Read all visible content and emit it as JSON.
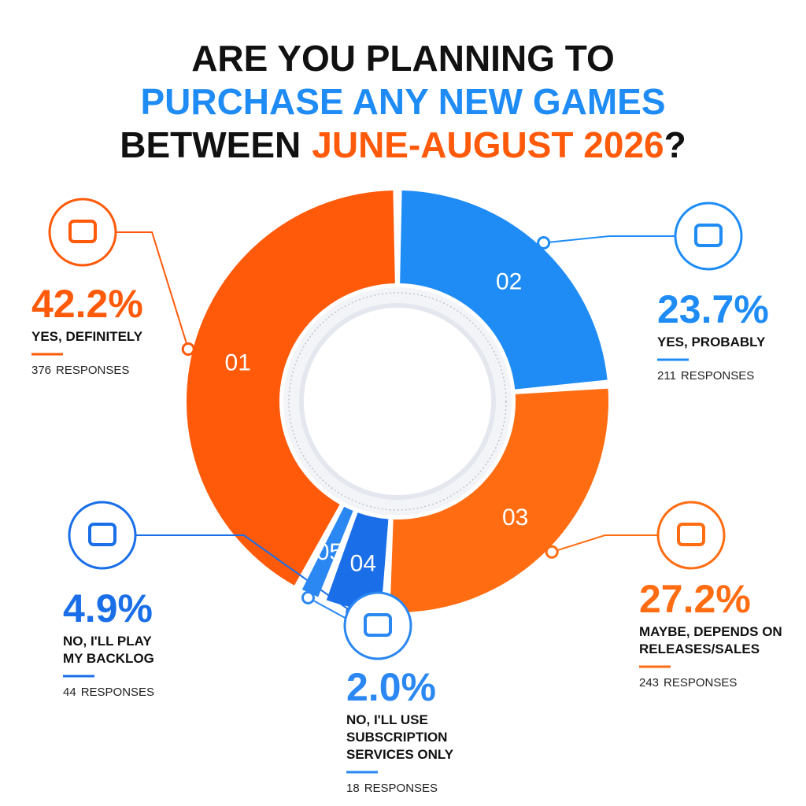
{
  "chart_data": {
    "type": "donut",
    "title": {
      "line1": "ARE YOU PLANNING TO",
      "line2": "PURCHASE ANY NEW GAMES",
      "line3_start": "BETWEEN",
      "line3_highlight": "JUNE-AUGUST 2026",
      "line3_end": "?"
    },
    "categories": [
      "01",
      "02",
      "03",
      "04",
      "05"
    ],
    "labels": [
      [
        "YES, DEFINITELY"
      ],
      [
        "YES, PROBABLY"
      ],
      [
        "MAYBE, DEPENDS ON",
        "RELEASES/SALES"
      ],
      [
        "NO, I'LL PLAY",
        "MY BACKLOG"
      ],
      [
        "NO, I'LL USE",
        "SUBSCRIPTION",
        "SERVICES ONLY"
      ]
    ],
    "values": [
      42.2,
      23.7,
      27.2,
      4.9,
      2.0
    ],
    "value_labels": [
      "42.2%",
      "23.7%",
      "27.2%",
      "4.9%",
      "2.0%"
    ],
    "responses": [
      376,
      211,
      243,
      44,
      18
    ],
    "responses_unit": "RESPONSES",
    "colors": [
      "#ff5a0a",
      "#1f8cf5",
      "#ff6c12",
      "#1a6fe8",
      "#2b87f2"
    ]
  }
}
